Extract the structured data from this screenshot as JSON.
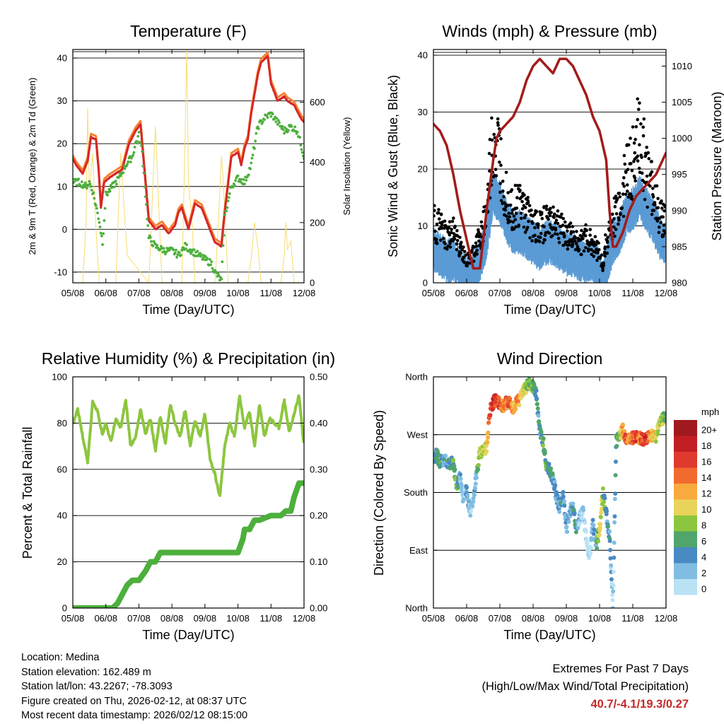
{
  "x_ticks": [
    "05/08",
    "06/08",
    "07/08",
    "08/08",
    "09/08",
    "10/08",
    "11/08",
    "12/08"
  ],
  "x_label": "Time (Day/UTC)",
  "colors": {
    "temp_2m": "#d62728",
    "temp_9m": "#f58231",
    "dewpoint": "#4daf3c",
    "solar": "#f7dc6f",
    "wind": "#5b9bd5",
    "gust": "#000000",
    "pressure": "#a31b1b",
    "rh": "#8dc63f",
    "precip": "#4daf3c",
    "grid": "#000000"
  },
  "chart_data": [
    {
      "type": "line",
      "title": "Temperature (F)",
      "ylabel": "2m & 9m T (Red, Orange) & 2m Td (Green)",
      "y2label": "Solar Insolation (Yellow)",
      "ylim": [
        -12.5,
        42
      ],
      "y2lim": [
        0,
        775
      ],
      "yticks": [
        "-10",
        "0",
        "10",
        "20",
        "30",
        "40"
      ],
      "y2ticks": [
        "0",
        "200",
        "400",
        "600"
      ],
      "hlines": [
        -10,
        0,
        10,
        20,
        30,
        40,
        41.5
      ],
      "series": [
        {
          "name": "2m T",
          "x": [
            0,
            0.1,
            0.3,
            0.45,
            0.55,
            0.7,
            0.78,
            0.85,
            0.95,
            1.1,
            1.3,
            1.5,
            1.7,
            1.9,
            2.0,
            2.05,
            2.1,
            2.3,
            2.5,
            2.7,
            2.9,
            3.0,
            3.1,
            3.2,
            3.3,
            3.5,
            3.6,
            3.7,
            3.9,
            4.1,
            4.2,
            4.3,
            4.5,
            4.6,
            4.8,
            5.0,
            5.1,
            5.2,
            5.3,
            5.4,
            5.6,
            5.7,
            5.9,
            6.0,
            6.2,
            6.4,
            6.5,
            6.7,
            6.9,
            7.0
          ],
          "values": [
            16.5,
            15,
            13,
            16,
            21.5,
            21,
            14,
            5,
            11,
            12,
            13,
            14,
            20,
            23,
            24,
            24.5,
            20,
            2,
            0,
            1,
            -1,
            0,
            1,
            4,
            5,
            0,
            3,
            6,
            5,
            1,
            -1,
            -3,
            -4,
            4,
            17,
            18,
            15,
            19,
            21,
            27,
            36,
            39,
            40.5,
            34,
            30,
            31,
            30,
            29,
            26,
            25
          ]
        },
        {
          "name": "2m Td",
          "x": [
            0,
            0.2,
            0.4,
            0.5,
            0.6,
            0.8,
            0.9,
            1.0,
            1.2,
            1.4,
            1.6,
            1.8,
            1.9,
            2.0,
            2.1,
            2.3,
            2.5,
            2.8,
            3.0,
            3.2,
            3.4,
            3.6,
            3.8,
            4.0,
            4.2,
            4.3,
            4.5,
            4.6,
            4.8,
            5.0,
            5.2,
            5.4,
            5.6,
            5.8,
            6.0,
            6.2,
            6.4,
            6.6,
            6.8,
            7.0
          ],
          "values": [
            11,
            11,
            10,
            11,
            9,
            2,
            -3,
            8,
            10,
            12,
            15,
            17,
            20,
            22,
            18,
            -2,
            -4,
            -5,
            -5,
            -6,
            -4,
            -5,
            -6,
            -7,
            -8,
            -10,
            -12,
            3,
            10,
            12,
            11,
            15,
            24,
            26,
            27,
            25,
            23,
            24,
            23,
            17
          ]
        },
        {
          "name": "Solar",
          "axis": "y2",
          "x": [
            0,
            0.3,
            0.4,
            0.45,
            0.5,
            0.6,
            0.7,
            0.8,
            1.3,
            1.35,
            1.45,
            1.55,
            1.65,
            2.3,
            2.35,
            2.45,
            2.5,
            2.6,
            2.7,
            3.3,
            3.4,
            3.45,
            3.5,
            3.6,
            3.7,
            4.3,
            4.4,
            4.5,
            4.55,
            4.7,
            5.3,
            5.4,
            5.5,
            5.6,
            5.7,
            6.3,
            6.4,
            6.45,
            6.5,
            6.6,
            6.7,
            7.0
          ],
          "values": [
            0,
            0,
            200,
            580,
            300,
            430,
            180,
            0,
            0,
            140,
            430,
            250,
            90,
            0,
            120,
            400,
            520,
            260,
            0,
            0,
            480,
            780,
            330,
            220,
            0,
            0,
            180,
            420,
            350,
            0,
            0,
            80,
            200,
            120,
            0,
            0,
            90,
            200,
            110,
            140,
            0,
            0
          ]
        }
      ]
    },
    {
      "type": "line",
      "title": "Winds (mph) & Pressure (mb)",
      "ylabel": "Sonic Wind & Gust (Blue, Black)",
      "y2label": "Station Pressure (Maroon)",
      "ylim": [
        0,
        41
      ],
      "y2lim": [
        980,
        1012.3
      ],
      "yticks": [
        "0",
        "10",
        "20",
        "30",
        "40"
      ],
      "y2ticks": [
        "980",
        "985",
        "990",
        "995",
        "1000",
        "1005",
        "1010"
      ],
      "hlines": [
        10,
        20,
        30,
        40,
        40.5
      ],
      "series": [
        {
          "name": "Gust",
          "x": [
            0,
            0.2,
            0.4,
            0.6,
            0.8,
            1.0,
            1.2,
            1.4,
            1.6,
            1.8,
            2.0,
            2.2,
            2.4,
            2.6,
            2.8,
            3.0,
            3.2,
            3.4,
            3.6,
            3.8,
            4.0,
            4.2,
            4.4,
            4.6,
            4.8,
            5.0,
            5.1,
            5.2,
            5.4,
            5.6,
            5.8,
            6.0,
            6.2,
            6.4,
            6.6,
            6.8,
            7.0
          ],
          "values": [
            12,
            11,
            9,
            10,
            7,
            4,
            6,
            9,
            14,
            29,
            25,
            18,
            15,
            16,
            14,
            12,
            11,
            12,
            13,
            11,
            10,
            9,
            8,
            9,
            8,
            6,
            3,
            8,
            12,
            16,
            22,
            24,
            30,
            22,
            18,
            14,
            12
          ]
        },
        {
          "name": "Wind",
          "x": [
            0,
            0.2,
            0.4,
            0.6,
            0.8,
            1.0,
            1.2,
            1.4,
            1.6,
            1.8,
            2.0,
            2.2,
            2.4,
            2.6,
            2.8,
            3.0,
            3.2,
            3.4,
            3.6,
            3.8,
            4.0,
            4.2,
            4.4,
            4.6,
            4.8,
            5.0,
            5.1,
            5.2,
            5.4,
            5.6,
            5.8,
            6.0,
            6.2,
            6.4,
            6.6,
            6.8,
            7.0
          ],
          "values": [
            7,
            6,
            5,
            5,
            4,
            2,
            3,
            5,
            9,
            17,
            15,
            12,
            10,
            10,
            9,
            8,
            7,
            8,
            8,
            7,
            6,
            6,
            5,
            5,
            5,
            3,
            1,
            4,
            8,
            10,
            13,
            14,
            16,
            14,
            12,
            9,
            8
          ]
        },
        {
          "name": "Pressure",
          "axis": "y2",
          "x": [
            0,
            0.2,
            0.4,
            0.6,
            0.8,
            1.0,
            1.2,
            1.4,
            1.6,
            1.8,
            1.9,
            2.0,
            2.2,
            2.4,
            2.6,
            2.8,
            3.0,
            3.2,
            3.4,
            3.6,
            3.8,
            4.0,
            4.2,
            4.4,
            4.6,
            4.8,
            5.0,
            5.2,
            5.3,
            5.4,
            5.5,
            5.7,
            5.9,
            6.1,
            6.3,
            6.5,
            6.7,
            6.9,
            7.0
          ],
          "values": [
            1002,
            1001,
            999,
            995,
            990,
            986,
            982,
            982,
            990,
            997,
            1000,
            1001,
            1002,
            1003,
            1005,
            1008,
            1010,
            1011,
            1010,
            1009,
            1011,
            1011,
            1010,
            1008,
            1006,
            1003,
            1001,
            997,
            990,
            985,
            985,
            987,
            990,
            992,
            993,
            994,
            995,
            997,
            998
          ]
        }
      ]
    },
    {
      "type": "line",
      "title": "Relative Humidity (%) & Precipitation (in)",
      "ylabel": "Percent & Total Rainfall",
      "ylim": [
        0,
        100
      ],
      "y2lim": [
        0,
        0.5
      ],
      "yticks": [
        "0",
        "20",
        "40",
        "60",
        "80",
        "100"
      ],
      "y2ticks": [
        "0.00",
        "0.10",
        "0.20",
        "0.30",
        "0.40",
        "0.50"
      ],
      "hlines": [
        20,
        40,
        60,
        80
      ],
      "series": [
        {
          "name": "RH",
          "x": [
            0,
            0.15,
            0.3,
            0.45,
            0.6,
            0.75,
            0.9,
            1.0,
            1.15,
            1.3,
            1.45,
            1.6,
            1.75,
            1.9,
            2.05,
            2.2,
            2.35,
            2.5,
            2.65,
            2.8,
            2.95,
            3.1,
            3.25,
            3.4,
            3.55,
            3.7,
            3.85,
            4.0,
            4.15,
            4.3,
            4.45,
            4.6,
            4.75,
            4.9,
            5.05,
            5.2,
            5.35,
            5.5,
            5.65,
            5.8,
            5.95,
            6.1,
            6.25,
            6.4,
            6.55,
            6.7,
            6.85,
            7.0
          ],
          "values": [
            80,
            86,
            74,
            63,
            89,
            85,
            75,
            80,
            72,
            82,
            78,
            90,
            70,
            74,
            86,
            75,
            82,
            68,
            83,
            71,
            88,
            80,
            74,
            86,
            70,
            81,
            74,
            84,
            65,
            58,
            48,
            70,
            80,
            74,
            92,
            78,
            85,
            70,
            88,
            74,
            82,
            80,
            78,
            90,
            76,
            84,
            92,
            70
          ]
        },
        {
          "name": "Precip",
          "axis": "y2",
          "x": [
            0,
            1.2,
            1.35,
            1.5,
            1.65,
            1.8,
            2.0,
            2.2,
            2.35,
            2.5,
            2.65,
            3.0,
            4.0,
            5.0,
            5.15,
            5.2,
            5.35,
            5.5,
            5.65,
            6.0,
            6.3,
            6.45,
            6.6,
            6.7,
            6.85,
            7.0
          ],
          "values": [
            0,
            0,
            0.01,
            0.03,
            0.05,
            0.06,
            0.06,
            0.08,
            0.1,
            0.1,
            0.12,
            0.12,
            0.12,
            0.12,
            0.15,
            0.17,
            0.17,
            0.19,
            0.19,
            0.2,
            0.2,
            0.21,
            0.21,
            0.24,
            0.27,
            0.27
          ]
        }
      ]
    },
    {
      "type": "scatter",
      "title": "Wind Direction",
      "ylabel": "Direction (Colored By Speed)",
      "ylim": [
        0,
        360
      ],
      "yticks": [
        "North",
        "East",
        "South",
        "West",
        "North"
      ],
      "hlines": [
        90,
        180,
        270
      ],
      "series": [
        {
          "name": "Direction",
          "x": [
            0,
            0.1,
            0.2,
            0.3,
            0.4,
            0.5,
            0.6,
            0.7,
            0.8,
            0.9,
            1.0,
            1.1,
            1.2,
            1.3,
            1.4,
            1.5,
            1.6,
            1.7,
            1.8,
            1.9,
            2.0,
            2.1,
            2.2,
            2.3,
            2.4,
            2.5,
            2.6,
            2.7,
            2.8,
            2.9,
            3.0,
            3.1,
            3.2,
            3.3,
            3.4,
            3.5,
            3.6,
            3.7,
            3.8,
            3.9,
            4.0,
            4.1,
            4.2,
            4.3,
            4.4,
            4.5,
            4.6,
            4.7,
            4.8,
            4.9,
            5.0,
            5.1,
            5.2,
            5.3,
            5.4,
            5.5,
            5.6,
            5.7,
            5.8,
            5.9,
            6.0,
            6.1,
            6.2,
            6.3,
            6.4,
            6.5,
            6.6,
            6.7,
            6.8,
            6.9,
            7.0
          ],
          "values": [
            230,
            240,
            225,
            230,
            228,
            225,
            228,
            190,
            205,
            170,
            185,
            150,
            170,
            210,
            240,
            245,
            250,
            305,
            320,
            325,
            318,
            315,
            320,
            322,
            310,
            320,
            325,
            340,
            345,
            350,
            345,
            330,
            275,
            260,
            225,
            215,
            200,
            175,
            155,
            180,
            120,
            150,
            160,
            125,
            140,
            150,
            110,
            80,
            130,
            95,
            125,
            180,
            150,
            110,
            0,
            260,
            265,
            280,
            260,
            262,
            265,
            268,
            265,
            262,
            262,
            268,
            270,
            265,
            290,
            295,
            300
          ],
          "speeds": [
            3,
            6,
            8,
            5,
            4,
            6,
            7,
            8,
            3,
            2,
            4,
            3,
            2,
            5,
            10,
            10,
            11,
            16,
            18,
            17,
            16,
            14,
            15,
            16,
            12,
            14,
            13,
            12,
            9,
            8,
            7,
            6,
            5,
            7,
            8,
            6,
            5,
            4,
            4,
            5,
            3,
            4,
            5,
            6,
            3,
            2,
            1,
            1,
            3,
            5,
            12,
            8,
            6,
            5,
            2,
            6,
            8,
            14,
            16,
            12,
            15,
            17,
            14,
            16,
            18,
            14,
            12,
            11,
            10,
            9,
            8
          ],
          "speed_bins": [
            "0",
            "2",
            "4",
            "6",
            "8",
            "10",
            "12",
            "14",
            "16",
            "18",
            "20+"
          ],
          "speed_colors": [
            "#b9e3f5",
            "#81bde2",
            "#4a8ac3",
            "#4fa56b",
            "#8cc63e",
            "#e8d45b",
            "#f9aa3f",
            "#f26b2e",
            "#df3a2d",
            "#c21f24",
            "#a0191e"
          ],
          "legend_title": "mph"
        }
      ]
    }
  ],
  "info": {
    "location": "Location: Medina",
    "elevation": "Station elevation: 162.489 m",
    "latlon": "Station lat/lon: 43.2267; -78.3093",
    "created": "Figure created on Thu, 2026-02-12, at 08:37 UTC",
    "timestamp": "Most recent data timestamp: 2026/02/12 08:15:00"
  },
  "extremes": {
    "title": "Extremes For Past 7 Days",
    "subtitle": "(High/Low/Max Wind/Total Precipitation)",
    "values": "40.7/-4.1/19.3/0.27"
  }
}
